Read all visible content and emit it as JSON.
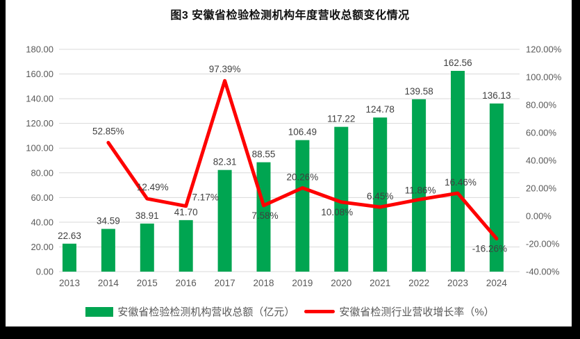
{
  "title": "图3 安徽省检验检测机构年度营收总额变化情况",
  "colors": {
    "bar": "#00A551",
    "line": "#FE0000",
    "grid": "#D9D9D9",
    "tick_text": "#595959",
    "data_label_text": "#3F3F3F",
    "frame_bg": "#000000",
    "canvas_bg": "#FFFFFF",
    "title_text": "#111111"
  },
  "legend": {
    "items": [
      {
        "type": "bar",
        "label": "安徽省检验检测机构营收总额（亿元）"
      },
      {
        "type": "line",
        "label": "安徽省检测行业营收增长率（%）"
      }
    ]
  },
  "chart_data": {
    "type": "combo-bar-line",
    "title": "图3 安徽省检验检测机构年度营收总额变化情况",
    "categories": [
      "2013",
      "2014",
      "2015",
      "2016",
      "2017",
      "2018",
      "2019",
      "2020",
      "2021",
      "2022",
      "2023",
      "2024"
    ],
    "series": [
      {
        "name": "安徽省检验检测机构营收总额（亿元）",
        "type": "bar",
        "axis": "left",
        "values": [
          22.63,
          34.59,
          38.91,
          41.7,
          82.31,
          88.55,
          106.49,
          117.22,
          124.78,
          139.58,
          162.56,
          136.13
        ],
        "labels": [
          "22.63",
          "34.59",
          "38.91",
          "41.70",
          "82.31",
          "88.55",
          "106.49",
          "117.22",
          "124.78",
          "139.58",
          "162.56",
          "136.13"
        ]
      },
      {
        "name": "安徽省检测行业营收增长率（%）",
        "type": "line",
        "axis": "right",
        "start_category_index": 1,
        "values": [
          52.85,
          12.49,
          7.17,
          97.39,
          7.58,
          20.26,
          10.08,
          6.45,
          11.86,
          16.46,
          -16.26
        ],
        "labels": [
          "52.85%",
          "12.49%",
          "7.17%",
          "97.39%",
          "7.58%",
          "20.26%",
          "10.08%",
          "6.45%",
          "11.86%",
          "16.46%",
          "-16.26%"
        ],
        "label_offsets": [
          [
            0,
            -12
          ],
          [
            8,
            -12
          ],
          [
            28,
            -8
          ],
          [
            0,
            -12
          ],
          [
            2,
            19
          ],
          [
            0,
            -11
          ],
          [
            -6,
            19
          ],
          [
            0,
            -11
          ],
          [
            2,
            -9
          ],
          [
            4,
            -11
          ],
          [
            -10,
            19
          ]
        ]
      }
    ],
    "left_axis": {
      "min": 0,
      "max": 180,
      "step": 20,
      "tick_labels": [
        "180.00",
        "160.00",
        "140.00",
        "120.00",
        "100.00",
        "80.00",
        "60.00",
        "40.00",
        "20.00",
        "0.00"
      ]
    },
    "right_axis": {
      "min": -40,
      "max": 120,
      "step": 20,
      "tick_labels": [
        "120.00%",
        "100.00%",
        "80.00%",
        "60.00%",
        "40.00%",
        "20.00%",
        "0.00%",
        "-20.00%",
        "-40.00%"
      ]
    },
    "grid": true,
    "legend_position": "bottom"
  }
}
